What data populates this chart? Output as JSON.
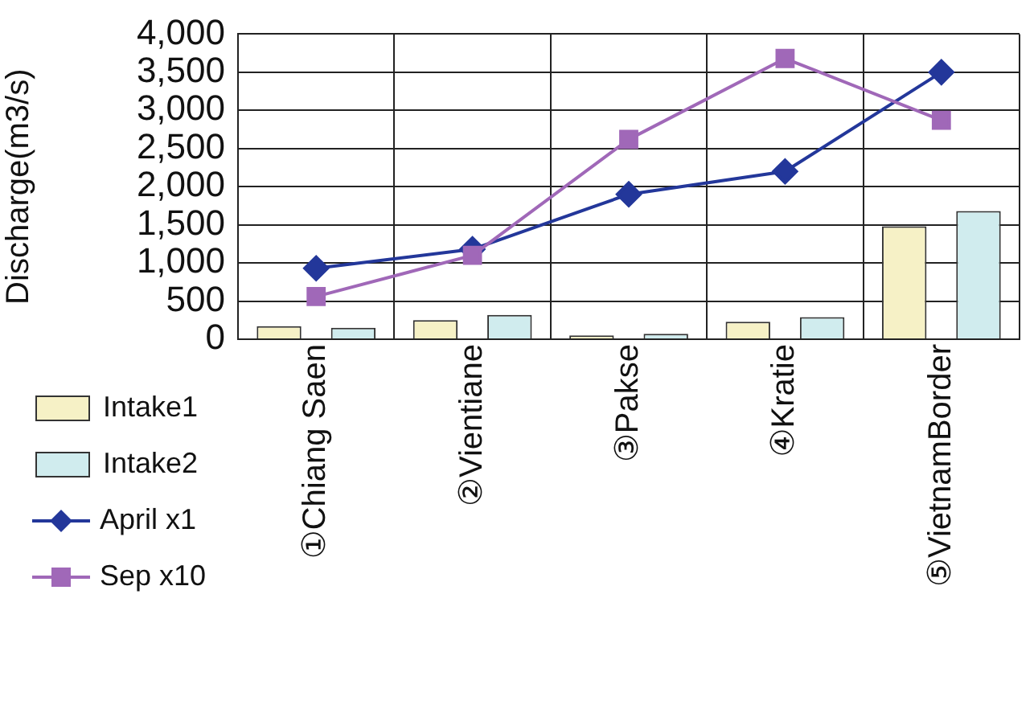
{
  "chart_data": {
    "type": "bar",
    "ylabel": "Discharge(m3/s)",
    "categories": [
      "①Chiang Saen",
      "②Vientiane",
      "③Pakse",
      "④Kratie",
      "⑤VietnamBorder"
    ],
    "series": [
      {
        "name": "Intake1",
        "color": "#f6f1c6",
        "values": [
          170,
          250,
          50,
          230,
          1480
        ]
      },
      {
        "name": "Intake2",
        "color": "#d0ecee",
        "values": [
          150,
          320,
          70,
          290,
          1680
        ]
      },
      {
        "name": "April x1",
        "type": "line",
        "color": "#23379a",
        "marker": "diamond",
        "values": [
          930,
          1180,
          1900,
          2200,
          3500
        ]
      },
      {
        "name": "Sep x10",
        "type": "line",
        "color": "#a068b8",
        "marker": "square",
        "values": [
          560,
          1100,
          2620,
          3680,
          2870
        ]
      }
    ],
    "ylim": [
      0,
      4000
    ],
    "yticks": [
      0,
      500,
      {
        "value": 1000,
        "label": "1,000"
      },
      {
        "value": 1500,
        "label": "1,500"
      },
      {
        "value": 2000,
        "label": "2,000"
      },
      {
        "value": 2500,
        "label": "2,500"
      },
      {
        "value": 3000,
        "label": "3,000"
      },
      {
        "value": 3500,
        "label": "3,500"
      },
      {
        "value": 4000,
        "label": "4,000"
      }
    ],
    "grid": true,
    "legend": "bottom left"
  }
}
